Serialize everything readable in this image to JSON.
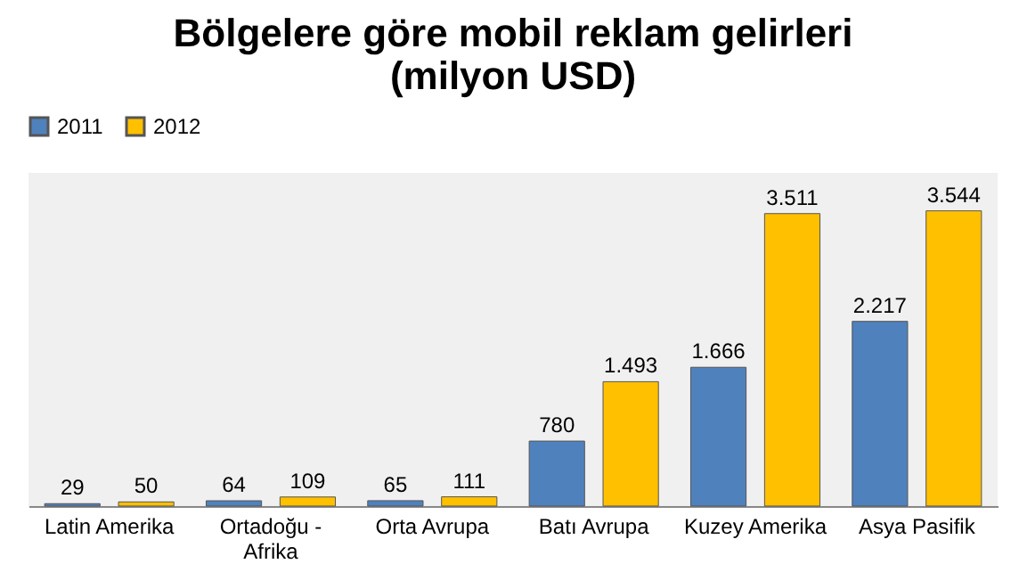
{
  "chart_data": {
    "type": "bar",
    "title": "Bölgelere göre mobil reklam gelirleri (milyon USD)",
    "categories": [
      "Latin Amerika",
      "Ortadoğu - Afrika",
      "Orta Avrupa",
      "Batı Avrupa",
      "Kuzey Amerika",
      "Asya Pasifik"
    ],
    "series": [
      {
        "name": "2011",
        "color": "#4f81bd",
        "values": [
          29,
          64,
          65,
          780,
          1666,
          2217
        ],
        "value_labels": [
          "29",
          "64",
          "65",
          "780",
          "1.666",
          "2.217"
        ]
      },
      {
        "name": "2012",
        "color": "#ffc000",
        "values": [
          50,
          109,
          111,
          1493,
          3511,
          3544
        ],
        "value_labels": [
          "50",
          "109",
          "111",
          "1.493",
          "3.511",
          "3.544"
        ]
      }
    ],
    "ylim": [
      0,
      4000
    ],
    "legend": "top",
    "grid": false
  }
}
